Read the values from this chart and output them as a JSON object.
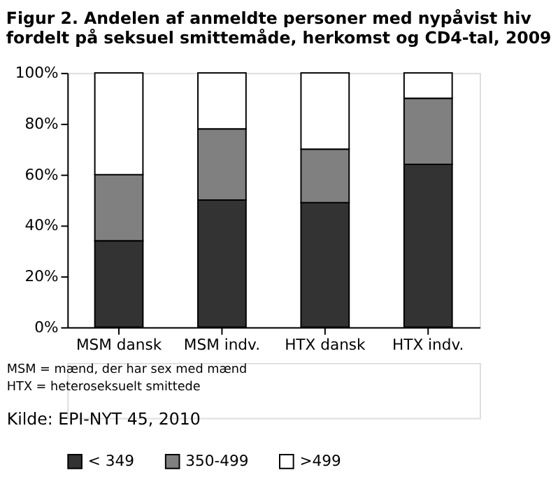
{
  "chart_data": {
    "type": "bar",
    "stacked": true,
    "title": [
      "Figur 2. Andelen af anmeldte personer med nypåvist hiv",
      "fordelt på seksuel smittemåde, herkomst og CD4-tal, 2009"
    ],
    "categories": [
      "MSM dansk",
      "MSM indv.",
      "HTX dansk",
      "HTX indv."
    ],
    "series": [
      {
        "name": "< 349",
        "color": "#333333",
        "values": [
          34,
          50,
          49,
          64
        ]
      },
      {
        "name": "350-499",
        "color": "#808080",
        "values": [
          26,
          28,
          21,
          26
        ]
      },
      {
        "name": ">499",
        "color": "#ffffff",
        "values": [
          40,
          22,
          30,
          10
        ]
      }
    ],
    "ylim": [
      0,
      100
    ],
    "yticks": [
      {
        "value": 0,
        "label": "0%"
      },
      {
        "value": 20,
        "label": "20%"
      },
      {
        "value": 40,
        "label": "40%"
      },
      {
        "value": 60,
        "label": "60%"
      },
      {
        "value": 80,
        "label": "80%"
      },
      {
        "value": 100,
        "label": "100%"
      }
    ],
    "grid": false,
    "legend": "bottom",
    "annotations": [
      "MSM = mænd, der har sex med mænd",
      "HTX = heteroseksuelt smittede",
      "Kilde: EPI-NYT 45, 2010"
    ]
  }
}
